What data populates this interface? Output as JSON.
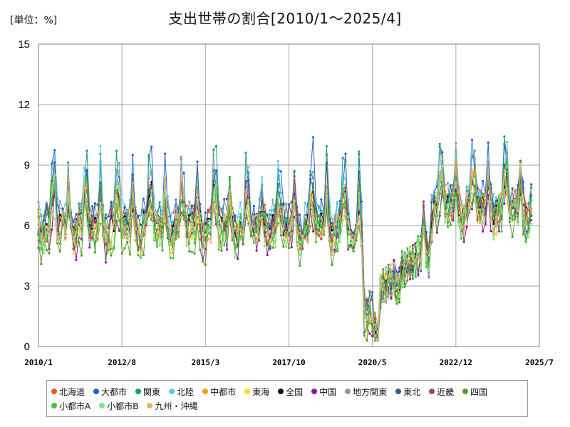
{
  "header": {
    "unit_label": "[単位：%]",
    "title": "支出世帯の割合[2010/1～2025/4]"
  },
  "chart_data": {
    "type": "line",
    "title": "支出世帯の割合[2010/1～2025/4]",
    "unit": "[単位：%]",
    "ylim": [
      0,
      15
    ],
    "y_ticks": [
      "0",
      "3",
      "6",
      "9",
      "12",
      "15"
    ],
    "x_tick_labels": [
      "2010/1",
      "2012/8",
      "2015/3",
      "2017/10",
      "2020/5",
      "2022/12",
      "2025/7"
    ],
    "grid": true,
    "legend_position": "bottom",
    "series": [
      {
        "name": "北海道",
        "color": "#f05a1e",
        "base": 6.2,
        "amp": 1.2,
        "vol": 0.9
      },
      {
        "name": "大都市",
        "color": "#1f5fd8",
        "base": 6.4,
        "amp": 2.0,
        "vol": 1.0
      },
      {
        "name": "関東",
        "color": "#1a9e74",
        "base": 6.3,
        "amp": 2.2,
        "vol": 0.9
      },
      {
        "name": "北陸",
        "color": "#5ec8e8",
        "base": 6.5,
        "amp": 1.6,
        "vol": 1.0
      },
      {
        "name": "中都市",
        "color": "#e8a41a",
        "base": 6.0,
        "amp": 1.2,
        "vol": 0.8
      },
      {
        "name": "東海",
        "color": "#f2e41c",
        "base": 6.0,
        "amp": 1.0,
        "vol": 0.8
      },
      {
        "name": "全国",
        "color": "#111111",
        "base": 6.1,
        "amp": 1.1,
        "vol": 0.6
      },
      {
        "name": "中国",
        "color": "#8a1aa0",
        "base": 5.6,
        "amp": 1.0,
        "vol": 0.9
      },
      {
        "name": "地方関東",
        "color": "#8f99a6",
        "base": 6.3,
        "amp": 1.8,
        "vol": 1.0
      },
      {
        "name": "東北",
        "color": "#3b5a8c",
        "base": 6.3,
        "amp": 1.4,
        "vol": 0.9
      },
      {
        "name": "近畿",
        "color": "#a8484f",
        "base": 6.0,
        "amp": 1.1,
        "vol": 0.8
      },
      {
        "name": "四国",
        "color": "#5a9a2a",
        "base": 5.5,
        "amp": 1.2,
        "vol": 1.0
      },
      {
        "name": "小都市A",
        "color": "#3cc83c",
        "base": 5.7,
        "amp": 1.2,
        "vol": 0.9
      },
      {
        "name": "小都市B",
        "color": "#82e882",
        "base": 5.8,
        "amp": 1.2,
        "vol": 0.9
      },
      {
        "name": "九州・沖縄",
        "color": "#e8b070",
        "base": 5.9,
        "amp": 1.2,
        "vol": 0.9
      }
    ]
  }
}
